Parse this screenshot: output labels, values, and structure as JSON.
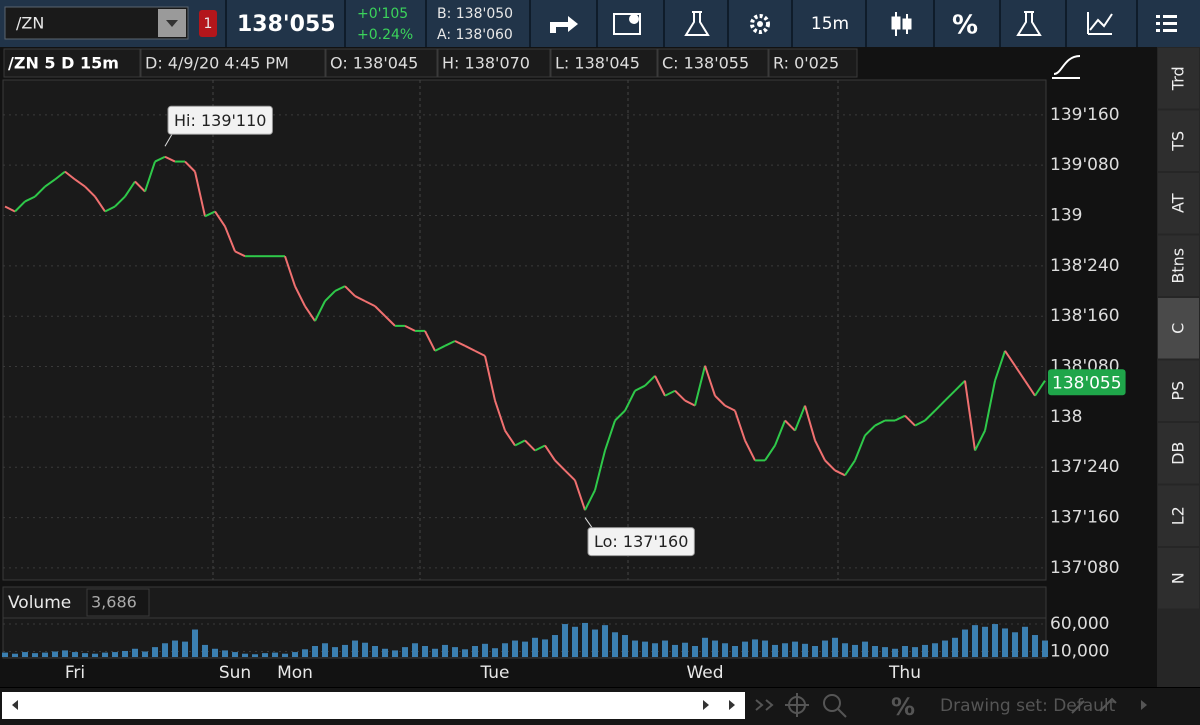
{
  "toolbar": {
    "symbol": "/ZN",
    "alert_count": "1",
    "last": "138'055",
    "change": "+0'105",
    "change_pct": "+0.24%",
    "bid": "B: 138'050",
    "ask": "A: 138'060",
    "timeframe": "15m",
    "percent": "%"
  },
  "header": {
    "study": "/ZN 5 D 15m",
    "date": "D: 4/9/20 4:45 PM",
    "open": "O: 138'045",
    "high": "H: 138'070",
    "low": "L: 138'045",
    "close": "C: 138'055",
    "range": "R: 0'025"
  },
  "chart_data": [
    {
      "type": "line",
      "categories": [
        null,
        null,
        null,
        null,
        null,
        null,
        null,
        "Fri",
        null,
        null,
        null,
        null,
        null,
        null,
        null,
        null,
        null,
        null,
        null,
        null,
        null,
        null,
        null,
        "Sun",
        null,
        null,
        null,
        null,
        null,
        "Mon",
        null,
        null,
        null,
        null,
        null,
        null,
        null,
        null,
        null,
        null,
        null,
        null,
        null,
        null,
        null,
        null,
        null,
        null,
        null,
        "Tue",
        null,
        null,
        null,
        null,
        null,
        null,
        null,
        null,
        null,
        null,
        null,
        null,
        null,
        null,
        null,
        null,
        null,
        null,
        null,
        null,
        "Wed",
        null,
        null,
        null,
        null,
        null,
        null,
        null,
        null,
        null,
        null,
        null,
        null,
        null,
        null,
        null,
        null,
        null,
        null,
        null,
        "Thu",
        null,
        null,
        null,
        null,
        null,
        null,
        null,
        null,
        null,
        null,
        null,
        null,
        null,
        null
      ],
      "values": [
        139.045,
        139.02,
        139.07,
        139.094,
        139.144,
        139.179,
        139.218,
        139.179,
        139.144,
        139.094,
        139.02,
        139.045,
        139.094,
        139.169,
        139.119,
        139.268,
        139.292,
        139.268,
        139.268,
        139.218,
        138.996,
        139.02,
        138.946,
        138.822,
        138.798,
        138.798,
        138.798,
        138.798,
        138.798,
        138.649,
        138.55,
        138.476,
        138.575,
        138.625,
        138.649,
        138.6,
        138.575,
        138.55,
        138.501,
        138.452,
        138.452,
        138.427,
        138.427,
        138.328,
        138.353,
        138.377,
        138.353,
        138.328,
        138.303,
        138.081,
        137.932,
        137.858,
        137.883,
        137.833,
        137.858,
        137.784,
        137.734,
        137.685,
        137.537,
        137.636,
        137.833,
        137.982,
        138.031,
        138.13,
        138.155,
        138.204,
        138.105,
        138.13,
        138.081,
        138.056,
        138.254,
        138.105,
        138.056,
        138.031,
        137.883,
        137.784,
        137.784,
        137.858,
        137.982,
        137.932,
        138.056,
        137.883,
        137.784,
        137.734,
        137.71,
        137.784,
        137.908,
        137.957,
        137.982,
        137.982,
        138.006,
        137.957,
        137.982,
        138.031,
        138.081,
        138.13,
        138.18,
        137.833,
        137.932,
        138.18,
        138.328,
        138.254,
        138.18,
        138.105,
        138.18
      ],
      "up_color": "#2fc94a",
      "down_color": "#f07070",
      "ylim": [
        137.19,
        139.673
      ],
      "yticks": [
        {
          "value": 139.5,
          "label": "139'160"
        },
        {
          "value": 139.25,
          "label": "139'080"
        },
        139,
        {
          "value": 138.75,
          "label": "138'240"
        },
        {
          "value": 138.5,
          "label": "138'160"
        },
        {
          "value": 138.25,
          "label": "138'080"
        },
        138,
        {
          "value": 137.75,
          "label": "137'240"
        },
        {
          "value": 137.5,
          "label": "137'160"
        },
        {
          "value": 137.25,
          "label": "137'080"
        }
      ],
      "grid": true,
      "annotations": [
        {
          "label": "Hi: 139'110",
          "value": 139.34375
        },
        {
          "label": "Lo: 137'160",
          "value": 137.5
        }
      ],
      "last_price": {
        "value": 138.171875,
        "label": "138'055",
        "color": "#1fa64a"
      }
    },
    {
      "type": "bar",
      "title": "Volume",
      "readout": "3,686",
      "color": "#3b7fb0",
      "values": [
        8000,
        6000,
        9000,
        7000,
        8000,
        10000,
        12000,
        9000,
        7000,
        6000,
        8000,
        9000,
        11000,
        15000,
        10000,
        18000,
        25000,
        30000,
        28000,
        50000,
        22000,
        15000,
        12000,
        9000,
        6000,
        5000,
        7000,
        8000,
        6000,
        9000,
        14000,
        20000,
        25000,
        18000,
        22000,
        30000,
        26000,
        20000,
        15000,
        12000,
        18000,
        25000,
        20000,
        15000,
        22000,
        18000,
        14000,
        20000,
        24000,
        16000,
        25000,
        30000,
        28000,
        35000,
        32000,
        40000,
        60000,
        55000,
        62000,
        50000,
        58000,
        45000,
        40000,
        30000,
        28000,
        25000,
        30000,
        22000,
        26000,
        20000,
        35000,
        30000,
        25000,
        20000,
        28000,
        32000,
        30000,
        22000,
        25000,
        28000,
        24000,
        20000,
        30000,
        35000,
        25000,
        22000,
        28000,
        20000,
        18000,
        15000,
        20000,
        18000,
        22000,
        25000,
        30000,
        35000,
        50000,
        58000,
        55000,
        60000,
        52000,
        45000,
        55000,
        40000,
        30000
      ],
      "ylim": [
        0,
        71000
      ],
      "yticks": [
        {
          "value": 60000,
          "label": "60,000"
        },
        {
          "value": 10000,
          "label": "10,000"
        }
      ]
    }
  ],
  "sidebar": {
    "tabs": [
      "Trd",
      "TS",
      "AT",
      "Btns",
      "C",
      "PS",
      "DB",
      "L2",
      "N"
    ]
  },
  "footer": {
    "drawing_set": "Drawing set: Default",
    "percent": "%"
  }
}
